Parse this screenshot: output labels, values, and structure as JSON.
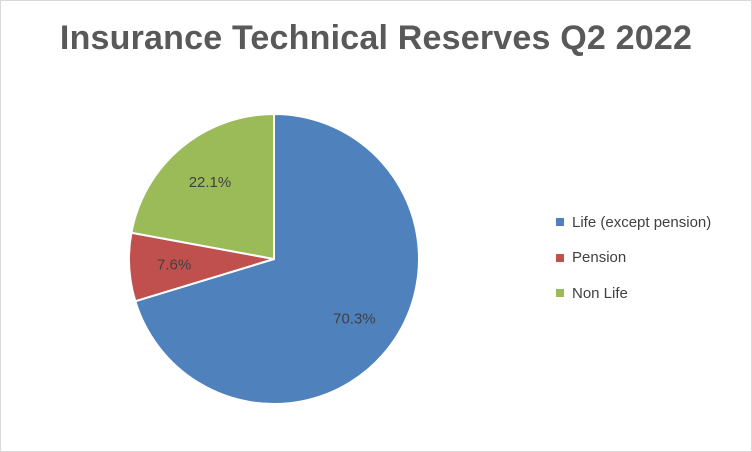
{
  "chart_data": {
    "type": "pie",
    "title": "Insurance Technical Reserves Q2 2022",
    "categories": [
      "Life (except pension)",
      "Pension",
      "Non Life"
    ],
    "values": [
      70.3,
      7.6,
      22.1
    ],
    "value_labels": [
      "70.3%",
      "7.6%",
      "22.1%"
    ],
    "colors": [
      "#4f81bd",
      "#c0504d",
      "#9bbb59"
    ],
    "legend": "right",
    "start_angle": "12 o'clock",
    "direction": "clockwise"
  }
}
